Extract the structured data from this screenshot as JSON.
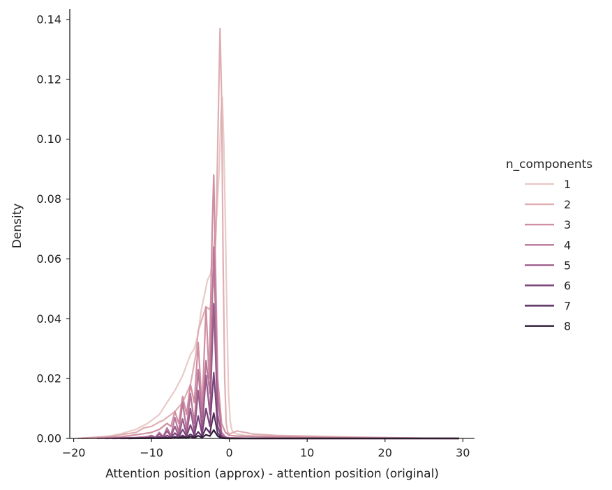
{
  "chart_data": {
    "type": "line",
    "title": "",
    "xlabel": "Attention position (approx) - attention position (original)",
    "ylabel": "Density",
    "xlim": [
      -20.5,
      31.5
    ],
    "ylim": [
      0,
      0.1435
    ],
    "xticks": [
      -20,
      -10,
      0,
      10,
      20,
      30
    ],
    "xtick_labels": [
      "−20",
      "−10",
      "0",
      "10",
      "20",
      "30"
    ],
    "yticks": [
      0,
      0.02,
      0.04,
      0.06,
      0.08,
      0.1,
      0.12,
      0.14
    ],
    "ytick_labels": [
      "0.00",
      "0.02",
      "0.04",
      "0.06",
      "0.08",
      "0.10",
      "0.12",
      "0.14"
    ],
    "grid": false,
    "legend": {
      "title": "n_components",
      "position": "right"
    },
    "series": [
      {
        "name": "1",
        "color": "#e8cbc8",
        "x": [
          -19.5,
          -16,
          -14,
          -12,
          -10.5,
          -9,
          -8,
          -7,
          -6,
          -5,
          -4.5,
          -4,
          -3.6,
          -3.2,
          -2.8,
          -2.4,
          -2,
          -1.6,
          -1.3,
          -1.1,
          -0.9,
          -0.7,
          -0.5,
          -0.3,
          -0.1,
          0.1,
          0.3,
          0.5,
          1,
          2,
          4,
          8,
          12,
          16,
          20,
          25,
          29.5
        ],
        "y": [
          0.0,
          0.0005,
          0.0015,
          0.003,
          0.005,
          0.008,
          0.012,
          0.016,
          0.021,
          0.028,
          0.03,
          0.035,
          0.043,
          0.048,
          0.053,
          0.055,
          0.065,
          0.075,
          0.09,
          0.108,
          0.114,
          0.098,
          0.07,
          0.04,
          0.015,
          0.006,
          0.003,
          0.002,
          0.0015,
          0.001,
          0.0008,
          0.0006,
          0.0005,
          0.0003,
          0.0002,
          0.0001,
          0.0
        ]
      },
      {
        "name": "2",
        "color": "#dfaeb3",
        "x": [
          -19.5,
          -15,
          -12,
          -11,
          -10,
          -9,
          -8.5,
          -8,
          -7.5,
          -7,
          -6,
          -5,
          -4.3,
          -4,
          -3.5,
          -3,
          -2.5,
          -2,
          -1.7,
          -1.4,
          -1.2,
          -1.0,
          -0.8,
          -0.6,
          -0.4,
          -0.2,
          0,
          0.5,
          1,
          3,
          6,
          10,
          15,
          20,
          25,
          29.5
        ],
        "y": [
          0.0,
          0.0008,
          0.002,
          0.0035,
          0.004,
          0.0055,
          0.006,
          0.007,
          0.008,
          0.009,
          0.012,
          0.018,
          0.028,
          0.036,
          0.04,
          0.044,
          0.043,
          0.052,
          0.07,
          0.11,
          0.137,
          0.115,
          0.06,
          0.02,
          0.005,
          0.002,
          0.0015,
          0.002,
          0.0025,
          0.0015,
          0.001,
          0.0008,
          0.0005,
          0.0003,
          0.0001,
          0.0
        ]
      },
      {
        "name": "3",
        "color": "#cf8ea1",
        "x": [
          -19,
          -14,
          -12,
          -10,
          -9,
          -8,
          -7.5,
          -7,
          -6.5,
          -6,
          -5.5,
          -5,
          -4.5,
          -4,
          -3.5,
          -3,
          -2.6,
          -2.2,
          -2.0,
          -1.8,
          -1.5,
          -1,
          -0.5,
          0,
          1,
          5,
          10,
          15,
          20,
          25,
          29.5
        ],
        "y": [
          0.0,
          0.0005,
          0.0012,
          0.002,
          0.003,
          0.005,
          0.004,
          0.009,
          0.005,
          0.014,
          0.008,
          0.018,
          0.012,
          0.032,
          0.01,
          0.044,
          0.02,
          0.07,
          0.088,
          0.06,
          0.02,
          0.005,
          0.002,
          0.001,
          0.0008,
          0.0006,
          0.0004,
          0.0002,
          0.0001,
          0.0,
          0.0
        ]
      },
      {
        "name": "4",
        "color": "#b8779a",
        "x": [
          -17,
          -12,
          -10.5,
          -10,
          -9.5,
          -9,
          -8.5,
          -8,
          -7.5,
          -7,
          -6.5,
          -6,
          -5.5,
          -5,
          -4.5,
          -4,
          -3.5,
          -3,
          -2.5,
          -2,
          -1.5,
          -1,
          -0.5,
          0,
          2,
          8,
          15,
          22,
          29.5
        ],
        "y": [
          0.0,
          0.0003,
          0.0006,
          0.001,
          0.0004,
          0.002,
          0.0006,
          0.0035,
          0.001,
          0.007,
          0.002,
          0.012,
          0.003,
          0.015,
          0.005,
          0.023,
          0.007,
          0.026,
          0.015,
          0.064,
          0.015,
          0.002,
          0.0005,
          0.0002,
          0.0001,
          0.0,
          0.0,
          0.0,
          0.0
        ]
      },
      {
        "name": "5",
        "color": "#9b5b8b",
        "x": [
          -16,
          -11,
          -10.3,
          -10,
          -9.5,
          -9,
          -8.5,
          -8,
          -7.5,
          -7,
          -6.5,
          -6,
          -5.5,
          -5,
          -4.5,
          -4,
          -3.5,
          -3,
          -2.5,
          -2,
          -1.5,
          -1,
          -0.5,
          0,
          3,
          10,
          20,
          29.5
        ],
        "y": [
          0.0,
          0.0002,
          0.0004,
          0.0007,
          0.0003,
          0.0015,
          0.0005,
          0.0025,
          0.0006,
          0.004,
          0.0008,
          0.0065,
          0.0012,
          0.01,
          0.002,
          0.016,
          0.003,
          0.021,
          0.008,
          0.045,
          0.008,
          0.001,
          0.0003,
          0.0001,
          0.0,
          0.0,
          0.0,
          0.0
        ]
      },
      {
        "name": "6",
        "color": "#7a4378",
        "x": [
          -15,
          -10,
          -9.5,
          -9,
          -8.5,
          -8,
          -7.5,
          -7,
          -6.5,
          -6,
          -5.5,
          -5,
          -4.5,
          -4,
          -3.5,
          -3,
          -2.5,
          -2,
          -1.5,
          -1,
          -0.5,
          0,
          5,
          15,
          29.5
        ],
        "y": [
          0.0,
          0.0002,
          0.0001,
          0.0006,
          0.0002,
          0.001,
          0.0003,
          0.0018,
          0.0005,
          0.003,
          0.0007,
          0.0045,
          0.001,
          0.0075,
          0.0015,
          0.01,
          0.004,
          0.022,
          0.004,
          0.0005,
          0.0001,
          0.0,
          0.0,
          0.0,
          0.0
        ]
      },
      {
        "name": "7",
        "color": "#582e5e",
        "x": [
          -14,
          -9,
          -8.5,
          -8,
          -7.5,
          -7,
          -6.5,
          -6,
          -5.5,
          -5,
          -4.5,
          -4,
          -3.5,
          -3,
          -2.5,
          -2,
          -1.5,
          -1,
          -0.5,
          0,
          5,
          15,
          29.5
        ],
        "y": [
          0.0,
          0.0001,
          5e-05,
          0.0003,
          0.0001,
          0.0006,
          0.0002,
          0.001,
          0.0003,
          0.0014,
          0.0005,
          0.0022,
          0.0007,
          0.0035,
          0.0018,
          0.0085,
          0.0018,
          0.0003,
          0.0001,
          0.0,
          0.0,
          0.0,
          0.0
        ]
      },
      {
        "name": "8",
        "color": "#2d1b36",
        "x": [
          -13,
          -8,
          -7.5,
          -7,
          -6.5,
          -6,
          -5.5,
          -5,
          -4.5,
          -4,
          -3.5,
          -3,
          -2.5,
          -2,
          -1.5,
          -1,
          -0.5,
          0,
          5,
          15,
          29.5
        ],
        "y": [
          0.0,
          0.0001,
          5e-05,
          0.0002,
          0.0001,
          0.0004,
          0.0001,
          0.0006,
          0.0002,
          0.0009,
          0.0003,
          0.0012,
          0.0008,
          0.0028,
          0.0008,
          0.0001,
          0.0,
          0.0,
          0.0,
          0.0,
          0.0
        ]
      }
    ]
  }
}
